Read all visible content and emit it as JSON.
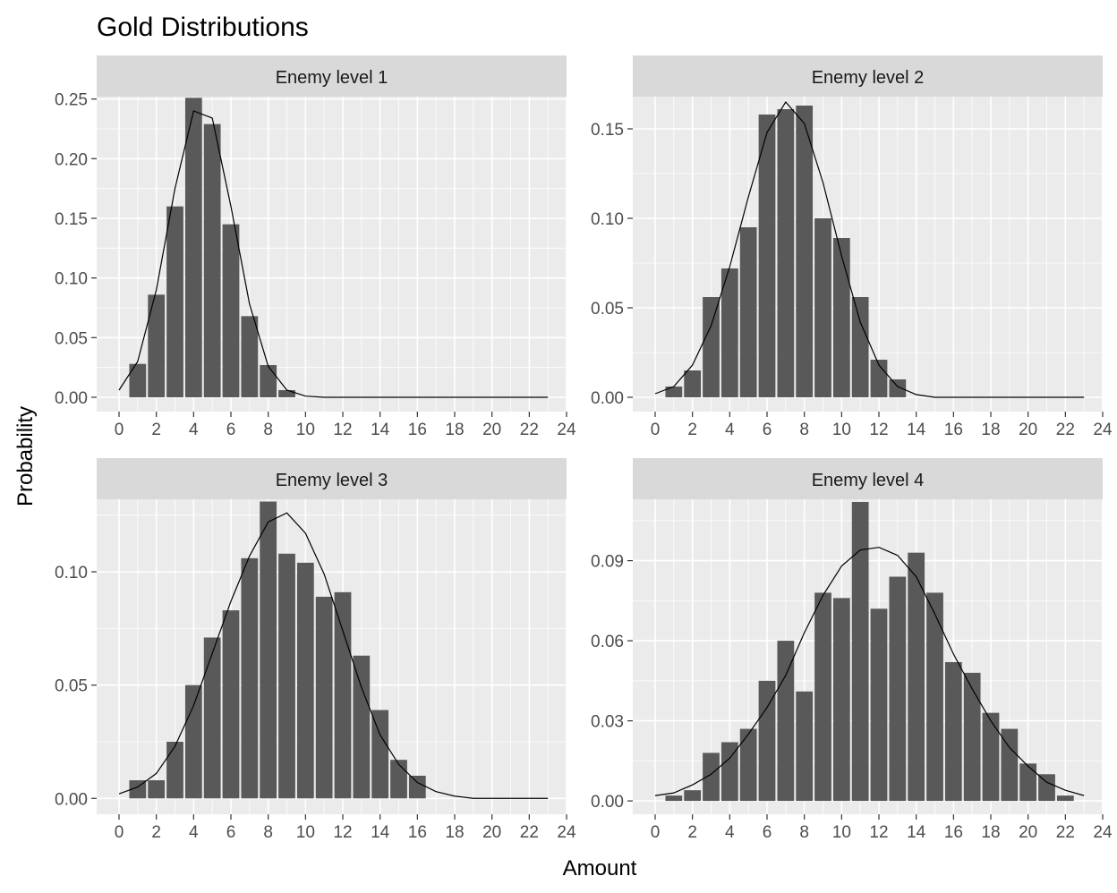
{
  "title": "Gold Distributions",
  "xlabel": "Amount",
  "ylabel": "Probability",
  "colors": {
    "panel_bg": "#EBEBEB",
    "strip_bg": "#D9D9D9",
    "grid": "#FFFFFF",
    "bar": "#595959",
    "line": "#000000",
    "tick_text": "#4D4D4D"
  },
  "x_ticks": [
    0,
    2,
    4,
    6,
    8,
    10,
    12,
    14,
    16,
    18,
    20,
    22,
    24
  ],
  "chart_data": [
    {
      "type": "bar",
      "facet": "Enemy level 1",
      "xlim": [
        -1.2,
        24
      ],
      "ylim": [
        -0.012,
        0.252
      ],
      "y_ticks": [
        0,
        0.05,
        0.1,
        0.15,
        0.2,
        0.25
      ],
      "y_tick_labels": [
        "0.00",
        "0.05",
        "0.10",
        "0.15",
        "0.20",
        "0.25"
      ],
      "bars": {
        "x": [
          1,
          2,
          3,
          4,
          5,
          6,
          7,
          8,
          9
        ],
        "values": [
          0.028,
          0.086,
          0.16,
          0.251,
          0.229,
          0.145,
          0.068,
          0.027,
          0.006
        ]
      },
      "curve": {
        "x": [
          0,
          1,
          2,
          3,
          4,
          5,
          6,
          7,
          8,
          9,
          10,
          11,
          12,
          13,
          14,
          15,
          16,
          17,
          18,
          19,
          20,
          21,
          22,
          23
        ],
        "y": [
          0.006,
          0.03,
          0.09,
          0.175,
          0.24,
          0.234,
          0.16,
          0.078,
          0.026,
          0.006,
          0.001,
          0,
          0,
          0,
          0,
          0,
          0,
          0,
          0,
          0,
          0,
          0,
          0,
          0
        ]
      }
    },
    {
      "type": "bar",
      "facet": "Enemy level 2",
      "xlim": [
        -1.2,
        24
      ],
      "ylim": [
        -0.008,
        0.168
      ],
      "y_ticks": [
        0,
        0.05,
        0.1,
        0.15
      ],
      "y_tick_labels": [
        "0.00",
        "0.05",
        "0.10",
        "0.15"
      ],
      "bars": {
        "x": [
          1,
          2,
          3,
          4,
          5,
          6,
          7,
          8,
          9,
          10,
          11,
          12,
          13
        ],
        "values": [
          0.006,
          0.015,
          0.056,
          0.072,
          0.095,
          0.158,
          0.161,
          0.163,
          0.1,
          0.089,
          0.056,
          0.021,
          0.01
        ]
      },
      "curve": {
        "x": [
          0,
          1,
          2,
          3,
          4,
          5,
          6,
          7,
          8,
          9,
          10,
          11,
          12,
          13,
          14,
          15,
          16,
          17,
          18,
          19,
          20,
          21,
          22,
          23
        ],
        "y": [
          0.002,
          0.006,
          0.018,
          0.04,
          0.073,
          0.112,
          0.148,
          0.165,
          0.153,
          0.12,
          0.079,
          0.042,
          0.018,
          0.006,
          0.0015,
          0,
          0,
          0,
          0,
          0,
          0,
          0,
          0,
          0
        ]
      }
    },
    {
      "type": "bar",
      "facet": "Enemy level 3",
      "xlim": [
        -1.2,
        24
      ],
      "ylim": [
        -0.007,
        0.132
      ],
      "y_ticks": [
        0,
        0.05,
        0.1
      ],
      "y_tick_labels": [
        "0.00",
        "0.05",
        "0.10"
      ],
      "bars": {
        "x": [
          1,
          2,
          3,
          4,
          5,
          6,
          7,
          8,
          9,
          10,
          11,
          12,
          13,
          14,
          15,
          16
        ],
        "values": [
          0.008,
          0.008,
          0.025,
          0.05,
          0.071,
          0.083,
          0.106,
          0.131,
          0.108,
          0.104,
          0.089,
          0.091,
          0.063,
          0.039,
          0.017,
          0.01
        ]
      },
      "curve": {
        "x": [
          0,
          1,
          2,
          3,
          4,
          5,
          6,
          7,
          8,
          9,
          10,
          11,
          12,
          13,
          14,
          15,
          16,
          17,
          18,
          19,
          20,
          21,
          22,
          23
        ],
        "y": [
          0.002,
          0.005,
          0.011,
          0.023,
          0.041,
          0.064,
          0.087,
          0.107,
          0.122,
          0.126,
          0.117,
          0.099,
          0.074,
          0.049,
          0.028,
          0.015,
          0.007,
          0.003,
          0.001,
          0,
          0,
          0,
          0,
          0
        ]
      }
    },
    {
      "type": "bar",
      "facet": "Enemy level 4",
      "xlim": [
        -1.2,
        24
      ],
      "ylim": [
        -0.005,
        0.113
      ],
      "y_ticks": [
        0,
        0.03,
        0.06,
        0.09
      ],
      "y_tick_labels": [
        "0.00",
        "0.03",
        "0.06",
        "0.09"
      ],
      "bars": {
        "x": [
          1,
          2,
          3,
          4,
          5,
          6,
          7,
          8,
          9,
          10,
          11,
          12,
          13,
          14,
          15,
          16,
          17,
          18,
          19,
          20,
          21,
          22
        ],
        "values": [
          0.002,
          0.004,
          0.018,
          0.022,
          0.027,
          0.045,
          0.06,
          0.041,
          0.078,
          0.076,
          0.112,
          0.072,
          0.084,
          0.093,
          0.078,
          0.052,
          0.048,
          0.033,
          0.027,
          0.014,
          0.01,
          0.002
        ]
      },
      "curve": {
        "x": [
          0,
          1,
          2,
          3,
          4,
          5,
          6,
          7,
          8,
          9,
          10,
          11,
          12,
          13,
          14,
          15,
          16,
          17,
          18,
          19,
          20,
          21,
          22,
          23
        ],
        "y": [
          0.002,
          0.003,
          0.006,
          0.01,
          0.016,
          0.025,
          0.035,
          0.047,
          0.063,
          0.077,
          0.088,
          0.094,
          0.095,
          0.092,
          0.084,
          0.07,
          0.055,
          0.042,
          0.03,
          0.02,
          0.013,
          0.007,
          0.004,
          0.002
        ]
      }
    }
  ]
}
